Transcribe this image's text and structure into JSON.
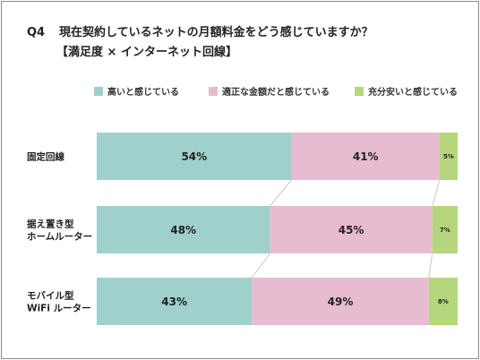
{
  "title": {
    "q": "Q4",
    "line1": "現在契約しているネットの月額料金をどう感じていますか？",
    "line2": "【満足度 × インターネット回線】"
  },
  "chart_data": {
    "type": "bar",
    "orientation": "horizontal",
    "stacked": "100%",
    "categories": [
      [
        "固定回線"
      ],
      [
        "据え置き型",
        "ホームルーター"
      ],
      [
        "モバイル型",
        "WiFi ルーター"
      ]
    ],
    "series": [
      {
        "name": "高いと感じている",
        "values": [
          54,
          48,
          43
        ],
        "color": "#9fd0cb"
      },
      {
        "name": "適正な金額だと感じている",
        "values": [
          41,
          45,
          49
        ],
        "color": "#e8bcd0"
      },
      {
        "name": "充分安いと感じている",
        "values": [
          5,
          7,
          8
        ],
        "color": "#b5d67c"
      }
    ],
    "value_suffix": "%",
    "xlim": [
      0,
      100
    ],
    "legend_position": "top-right",
    "grid": false
  }
}
